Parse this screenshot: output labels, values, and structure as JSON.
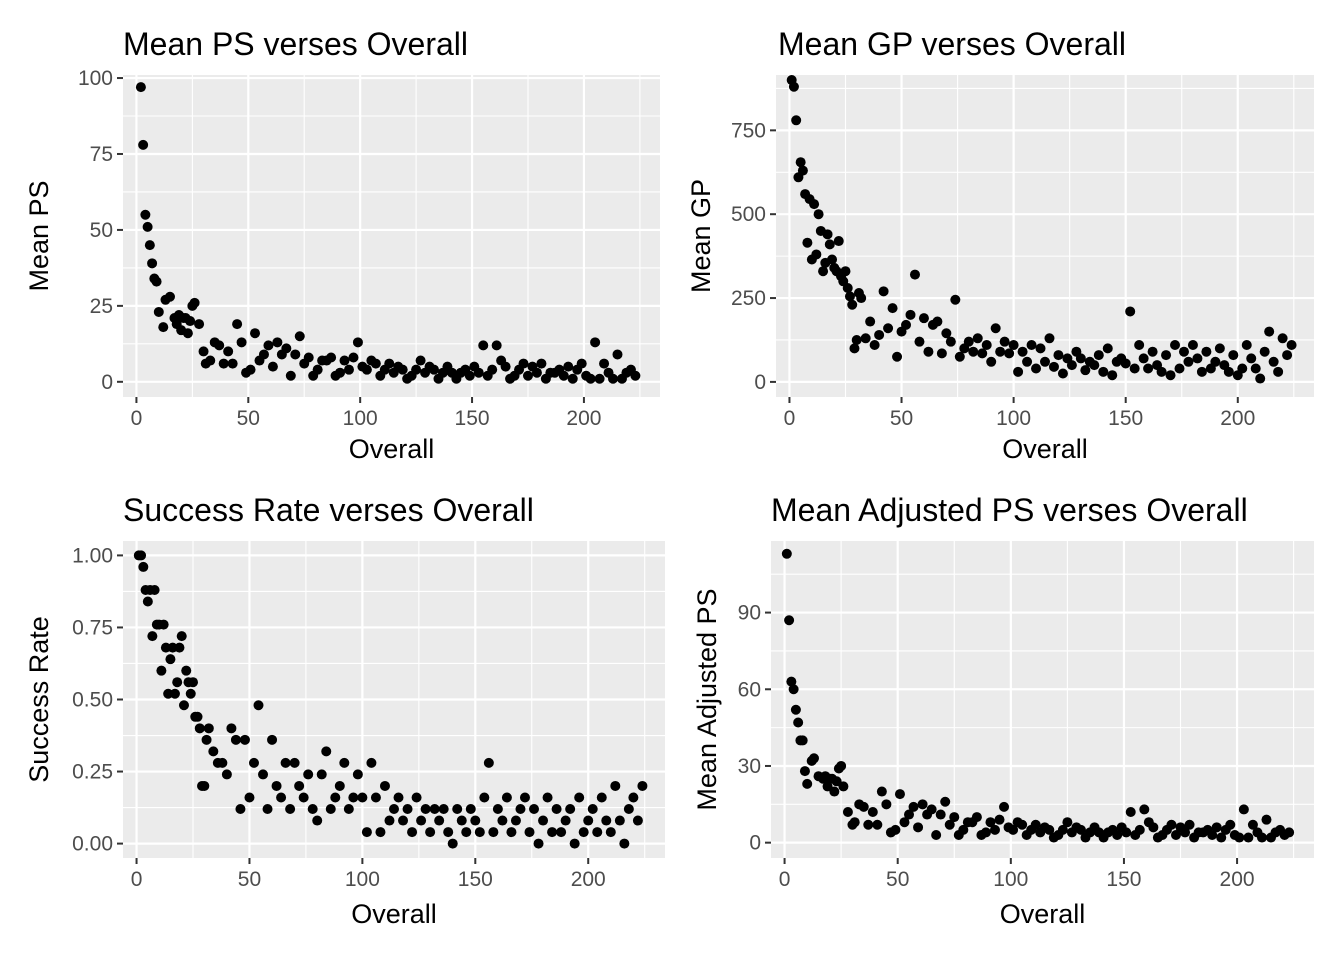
{
  "chart_data": [
    {
      "type": "scatter",
      "title": "Mean PS verses Overall",
      "xlabel": "Overall",
      "ylabel": "Mean PS",
      "xlim": [
        -6,
        234
      ],
      "ylim": [
        -5,
        101
      ],
      "x_ticks": [
        0,
        50,
        100,
        150,
        200
      ],
      "x_tick_labels": [
        "0",
        "50",
        "100",
        "150",
        "200"
      ],
      "y_ticks": [
        0,
        25,
        50,
        75,
        100
      ],
      "y_tick_labels": [
        "0",
        "25",
        "50",
        "75",
        "100"
      ],
      "grid": true,
      "x": [
        2,
        3,
        4,
        5,
        6,
        7,
        8,
        9,
        10,
        12,
        13,
        15,
        17,
        18,
        19,
        20,
        21,
        22,
        23,
        24,
        25,
        26,
        28,
        30,
        31,
        33,
        35,
        37,
        39,
        41,
        43,
        45,
        47,
        49,
        51,
        53,
        55,
        57,
        59,
        61,
        63,
        65,
        67,
        69,
        71,
        73,
        75,
        77,
        79,
        81,
        83,
        85,
        87,
        89,
        91,
        93,
        95,
        97,
        99,
        101,
        103,
        105,
        107,
        109,
        111,
        113,
        115,
        117,
        119,
        121,
        123,
        125,
        127,
        129,
        131,
        133,
        135,
        137,
        139,
        141,
        143,
        145,
        147,
        149,
        151,
        153,
        155,
        157,
        159,
        161,
        163,
        165,
        167,
        169,
        171,
        173,
        175,
        177,
        179,
        181,
        183,
        185,
        187,
        189,
        191,
        193,
        195,
        197,
        199,
        201,
        203,
        205,
        207,
        209,
        211,
        213,
        215,
        217,
        219,
        221,
        223
      ],
      "y": [
        97,
        78,
        55,
        51,
        45,
        39,
        34,
        33,
        23,
        18,
        27,
        28,
        21,
        19,
        22,
        17,
        21,
        21,
        16,
        20,
        25,
        26,
        19,
        10,
        6,
        7,
        13,
        12,
        6,
        10,
        6,
        19,
        13,
        3,
        4,
        16,
        7,
        9,
        12,
        5,
        13,
        9,
        11,
        2,
        9,
        15,
        6,
        8,
        2,
        4,
        7,
        7,
        8,
        2,
        3,
        7,
        4,
        8,
        13,
        5,
        4,
        7,
        6,
        2,
        4,
        6,
        3,
        5,
        4,
        1,
        2,
        4,
        7,
        3,
        5,
        4,
        1,
        3,
        5,
        3,
        1,
        3,
        4,
        2,
        5,
        3,
        12,
        2,
        4,
        12,
        7,
        5,
        1,
        2,
        4,
        6,
        2,
        5,
        3,
        6,
        1,
        3,
        3,
        4,
        2,
        5,
        1,
        4,
        6,
        2,
        1,
        13,
        1,
        6,
        3,
        1,
        9,
        1,
        3,
        4,
        2
      ]
    },
    {
      "type": "scatter",
      "title": "Mean GP verses Overall",
      "xlabel": "Overall",
      "ylabel": "Mean GP",
      "xlim": [
        -6,
        234
      ],
      "ylim": [
        -45,
        915
      ],
      "x_ticks": [
        0,
        50,
        100,
        150,
        200
      ],
      "x_tick_labels": [
        "0",
        "50",
        "100",
        "150",
        "200"
      ],
      "y_ticks": [
        0,
        250,
        500,
        750
      ],
      "y_tick_labels": [
        "0",
        "250",
        "500",
        "750"
      ],
      "grid": true,
      "x": [
        1,
        2,
        3,
        4,
        5,
        6,
        7,
        8,
        9,
        10,
        11,
        12,
        13,
        14,
        15,
        16,
        17,
        18,
        19,
        20,
        21,
        22,
        23,
        24,
        25,
        26,
        27,
        28,
        29,
        30,
        31,
        32,
        34,
        36,
        38,
        40,
        42,
        44,
        46,
        48,
        50,
        52,
        54,
        56,
        58,
        60,
        62,
        64,
        66,
        68,
        70,
        72,
        74,
        76,
        78,
        80,
        82,
        84,
        86,
        88,
        90,
        92,
        94,
        96,
        98,
        100,
        102,
        104,
        106,
        108,
        110,
        112,
        114,
        116,
        118,
        120,
        122,
        124,
        126,
        128,
        130,
        132,
        134,
        136,
        138,
        140,
        142,
        144,
        146,
        148,
        150,
        152,
        154,
        156,
        158,
        160,
        162,
        164,
        166,
        168,
        170,
        172,
        174,
        176,
        178,
        180,
        182,
        184,
        186,
        188,
        190,
        192,
        194,
        196,
        198,
        200,
        202,
        204,
        206,
        208,
        210,
        212,
        214,
        216,
        218,
        220,
        222,
        224
      ],
      "y": [
        900,
        880,
        780,
        610,
        655,
        630,
        560,
        415,
        545,
        365,
        530,
        380,
        500,
        450,
        330,
        355,
        440,
        410,
        365,
        340,
        330,
        420,
        315,
        300,
        330,
        280,
        255,
        230,
        100,
        125,
        265,
        250,
        130,
        180,
        110,
        140,
        270,
        160,
        220,
        75,
        150,
        170,
        200,
        320,
        120,
        190,
        90,
        170,
        180,
        85,
        145,
        120,
        245,
        75,
        100,
        120,
        90,
        130,
        85,
        110,
        60,
        160,
        90,
        120,
        85,
        110,
        30,
        90,
        60,
        110,
        40,
        100,
        60,
        130,
        45,
        80,
        25,
        70,
        50,
        90,
        70,
        35,
        60,
        50,
        80,
        30,
        100,
        20,
        60,
        70,
        55,
        210,
        40,
        110,
        70,
        40,
        90,
        50,
        30,
        80,
        20,
        110,
        40,
        90,
        60,
        110,
        70,
        30,
        90,
        40,
        60,
        100,
        50,
        30,
        80,
        20,
        40,
        110,
        70,
        40,
        10,
        90,
        150,
        60,
        30,
        130,
        80,
        110
      ]
    },
    {
      "type": "scatter",
      "title": "Success Rate verses Overall",
      "xlabel": "Overall",
      "ylabel": "Success Rate",
      "xlim": [
        -6,
        234
      ],
      "ylim": [
        -0.05,
        1.05
      ],
      "x_ticks": [
        0,
        50,
        100,
        150,
        200
      ],
      "x_tick_labels": [
        "0",
        "50",
        "100",
        "150",
        "200"
      ],
      "y_ticks": [
        0.0,
        0.25,
        0.5,
        0.75,
        1.0
      ],
      "y_tick_labels": [
        "0.00",
        "0.25",
        "0.50",
        "0.75",
        "1.00"
      ],
      "grid": true,
      "x": [
        1,
        2,
        3,
        4,
        5,
        6,
        7,
        8,
        9,
        10,
        11,
        12,
        13,
        14,
        15,
        16,
        17,
        18,
        19,
        20,
        21,
        22,
        23,
        24,
        25,
        26,
        27,
        28,
        29,
        30,
        31,
        32,
        34,
        36,
        38,
        40,
        42,
        44,
        46,
        48,
        50,
        52,
        54,
        56,
        58,
        60,
        62,
        64,
        66,
        68,
        70,
        72,
        74,
        76,
        78,
        80,
        82,
        84,
        86,
        88,
        90,
        92,
        94,
        96,
        98,
        100,
        102,
        104,
        106,
        108,
        110,
        112,
        114,
        116,
        118,
        120,
        122,
        124,
        126,
        128,
        130,
        132,
        134,
        136,
        138,
        140,
        142,
        144,
        146,
        148,
        150,
        152,
        154,
        156,
        158,
        160,
        162,
        164,
        166,
        168,
        170,
        172,
        174,
        176,
        178,
        180,
        182,
        184,
        186,
        188,
        190,
        192,
        194,
        196,
        198,
        200,
        202,
        204,
        206,
        208,
        210,
        212,
        214,
        216,
        218,
        220,
        222,
        224
      ],
      "y": [
        1.0,
        1.0,
        0.96,
        0.88,
        0.84,
        0.88,
        0.72,
        0.88,
        0.76,
        0.76,
        0.6,
        0.76,
        0.68,
        0.52,
        0.64,
        0.68,
        0.52,
        0.56,
        0.68,
        0.72,
        0.48,
        0.6,
        0.56,
        0.52,
        0.56,
        0.44,
        0.44,
        0.4,
        0.2,
        0.2,
        0.36,
        0.4,
        0.32,
        0.28,
        0.28,
        0.24,
        0.4,
        0.36,
        0.12,
        0.36,
        0.16,
        0.28,
        0.48,
        0.24,
        0.12,
        0.36,
        0.2,
        0.16,
        0.28,
        0.12,
        0.28,
        0.2,
        0.16,
        0.24,
        0.12,
        0.08,
        0.24,
        0.32,
        0.12,
        0.16,
        0.2,
        0.28,
        0.12,
        0.16,
        0.24,
        0.16,
        0.04,
        0.28,
        0.16,
        0.04,
        0.2,
        0.08,
        0.12,
        0.16,
        0.08,
        0.12,
        0.04,
        0.16,
        0.08,
        0.12,
        0.04,
        0.12,
        0.08,
        0.12,
        0.04,
        0.0,
        0.12,
        0.08,
        0.04,
        0.12,
        0.08,
        0.04,
        0.16,
        0.28,
        0.04,
        0.12,
        0.08,
        0.16,
        0.04,
        0.08,
        0.12,
        0.16,
        0.04,
        0.12,
        0.0,
        0.08,
        0.16,
        0.04,
        0.12,
        0.04,
        0.08,
        0.12,
        0.0,
        0.16,
        0.04,
        0.08,
        0.12,
        0.04,
        0.16,
        0.08,
        0.04,
        0.2,
        0.08,
        0.0,
        0.12,
        0.16,
        0.08,
        0.2
      ]
    },
    {
      "type": "scatter",
      "title": "Mean Adjusted PS verses Overall",
      "xlabel": "Overall",
      "ylabel": "Mean Adjusted PS",
      "xlim": [
        -6,
        234
      ],
      "ylim": [
        -6,
        118
      ],
      "x_ticks": [
        0,
        50,
        100,
        150,
        200
      ],
      "x_tick_labels": [
        "0",
        "50",
        "100",
        "150",
        "200"
      ],
      "y_ticks": [
        0,
        30,
        60,
        90
      ],
      "y_tick_labels": [
        "0",
        "30",
        "60",
        "90"
      ],
      "grid": true,
      "x": [
        1,
        2,
        3,
        4,
        5,
        6,
        7,
        8,
        9,
        10,
        12,
        13,
        15,
        17,
        18,
        19,
        20,
        21,
        22,
        23,
        24,
        25,
        26,
        28,
        30,
        31,
        33,
        35,
        37,
        39,
        41,
        43,
        45,
        47,
        49,
        51,
        53,
        55,
        57,
        59,
        61,
        63,
        65,
        67,
        69,
        71,
        73,
        75,
        77,
        79,
        81,
        83,
        85,
        87,
        89,
        91,
        93,
        95,
        97,
        99,
        101,
        103,
        105,
        107,
        109,
        111,
        113,
        115,
        117,
        119,
        121,
        123,
        125,
        127,
        129,
        131,
        133,
        135,
        137,
        139,
        141,
        143,
        145,
        147,
        149,
        151,
        153,
        155,
        157,
        159,
        161,
        163,
        165,
        167,
        169,
        171,
        173,
        175,
        177,
        179,
        181,
        183,
        185,
        187,
        189,
        191,
        193,
        195,
        197,
        199,
        201,
        203,
        205,
        207,
        209,
        211,
        213,
        215,
        217,
        219,
        221,
        223
      ],
      "y": [
        113,
        87,
        63,
        60,
        52,
        47,
        40,
        40,
        28,
        23,
        32,
        33,
        26,
        25,
        26,
        22,
        25,
        25,
        20,
        24,
        29,
        30,
        22,
        12,
        7,
        8,
        15,
        14,
        7,
        12,
        7,
        20,
        15,
        4,
        5,
        19,
        8,
        11,
        14,
        6,
        15,
        11,
        13,
        3,
        11,
        16,
        7,
        10,
        3,
        5,
        8,
        8,
        10,
        3,
        4,
        8,
        5,
        9,
        14,
        6,
        5,
        8,
        7,
        3,
        5,
        7,
        4,
        6,
        5,
        2,
        3,
        5,
        8,
        4,
        6,
        5,
        2,
        4,
        6,
        4,
        2,
        4,
        5,
        3,
        6,
        4,
        12,
        3,
        5,
        13,
        8,
        6,
        2,
        3,
        5,
        7,
        3,
        6,
        4,
        7,
        2,
        4,
        4,
        5,
        3,
        6,
        2,
        5,
        7,
        3,
        2,
        13,
        2,
        7,
        4,
        2,
        9,
        2,
        4,
        5,
        3,
        4
      ]
    }
  ]
}
